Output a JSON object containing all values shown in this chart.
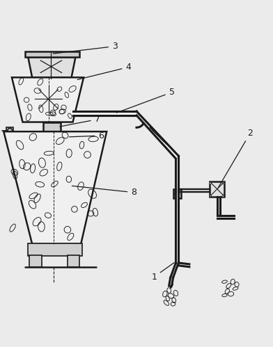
{
  "background_color": "#ebebeb",
  "line_color": "#1a1a1a",
  "figsize": [
    3.92,
    4.99
  ],
  "dpi": 100
}
